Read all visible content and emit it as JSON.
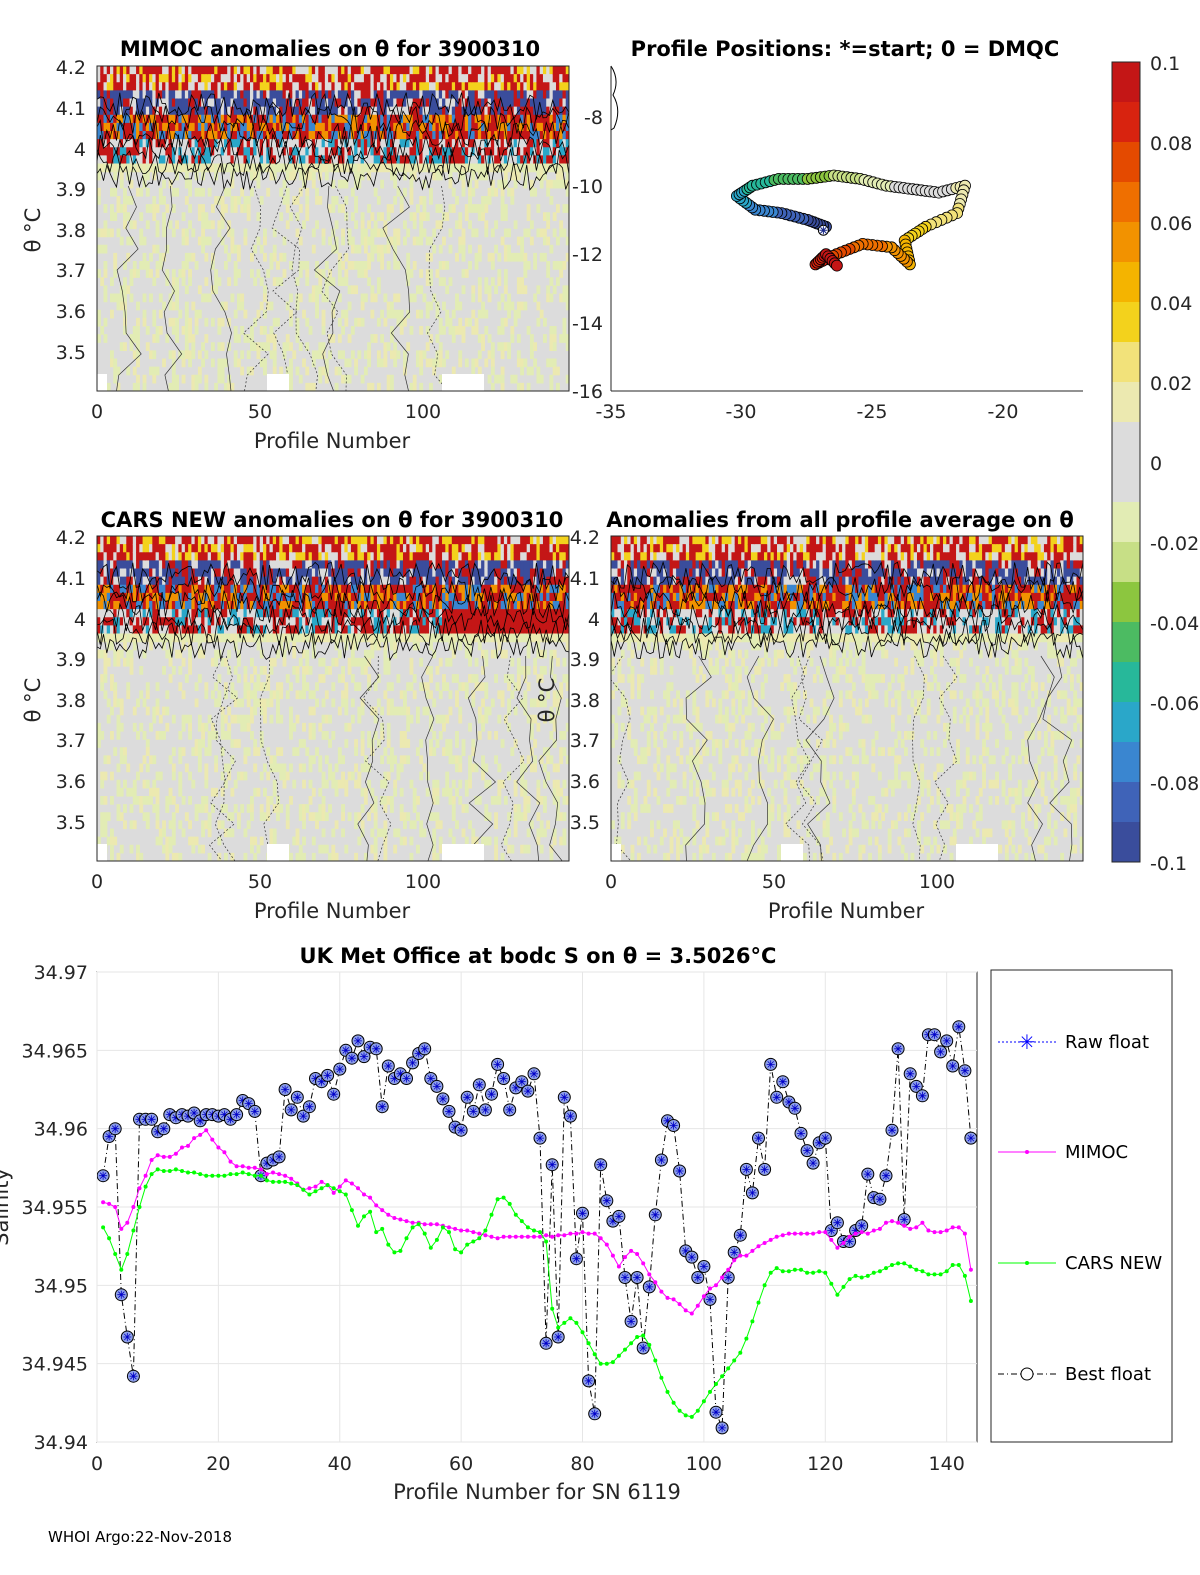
{
  "footer": "WHOI Argo:22-Nov-2018",
  "colorbar": {
    "ticks": [
      "0.1",
      "0.08",
      "0.06",
      "0.04",
      "0.02",
      "0",
      "-0.02",
      "-0.04",
      "-0.06",
      "-0.08",
      "-0.1"
    ]
  },
  "panel_mimoc": {
    "title": "MIMOC anomalies on θ  for 3900310",
    "ylabel": "θ °C",
    "xlabel": "Profile Number",
    "xticks": [
      "0",
      "50",
      "100"
    ],
    "yticks": [
      "4.2",
      "4.1",
      "4",
      "3.9",
      "3.8",
      "3.7",
      "3.6",
      "3.5"
    ]
  },
  "panel_map": {
    "title": "Profile Positions: *=start; 0 = DMQC",
    "xticks": [
      "-35",
      "-30",
      "-25",
      "-20"
    ],
    "yticks": [
      "-8",
      "-10",
      "-12",
      "-14",
      "-16"
    ]
  },
  "panel_cars": {
    "title": "CARS NEW anomalies on θ for 3900310",
    "ylabel": "θ °C",
    "xlabel": "Profile Number",
    "xticks": [
      "0",
      "50",
      "100"
    ],
    "yticks": [
      "4.2",
      "4.1",
      "4",
      "3.9",
      "3.8",
      "3.7",
      "3.6",
      "3.5"
    ]
  },
  "panel_avg": {
    "title": "Anomalies from all profile average on θ",
    "ylabel": "θ °C",
    "xlabel": "Profile Number",
    "xticks": [
      "0",
      "50",
      "100"
    ],
    "yticks": [
      "4.2",
      "4.1",
      "4",
      "3.9",
      "3.8",
      "3.7",
      "3.6",
      "3.5"
    ]
  },
  "chart_data": {
    "type": "line",
    "title": "UK Met Office at bodc S on θ = 3.5026°C",
    "xlabel": "Profile Number for SN 6119",
    "ylabel": "Salinity",
    "xlim": [
      0,
      145
    ],
    "ylim": [
      34.94,
      34.97
    ],
    "xticks": [
      "0",
      "20",
      "40",
      "60",
      "80",
      "100",
      "120",
      "140"
    ],
    "yticks": [
      "34.97",
      "34.965",
      "34.96",
      "34.955",
      "34.95",
      "34.945",
      "34.94"
    ],
    "legend": [
      "Raw float",
      "MIMOC",
      "CARS NEW",
      "Best float"
    ],
    "series": [
      {
        "name": "Best float",
        "color": "#000000",
        "x": [
          1,
          2,
          3,
          4,
          5,
          6,
          7,
          8,
          9,
          10,
          11,
          12,
          13,
          14,
          15,
          16,
          17,
          18,
          19,
          20,
          21,
          22,
          23,
          24,
          25,
          26,
          27,
          28,
          29,
          30,
          31,
          32,
          33,
          34,
          35,
          36,
          37,
          38,
          39,
          40,
          41,
          42,
          43,
          44,
          45,
          46,
          47,
          48,
          49,
          50,
          51,
          52,
          53,
          54,
          55,
          56,
          57,
          58,
          59,
          60,
          61,
          62,
          63,
          64,
          65,
          66,
          67,
          68,
          69,
          70,
          71,
          72,
          73,
          74,
          75,
          76,
          77,
          78,
          79,
          80,
          81,
          82,
          83,
          84,
          85,
          86,
          87,
          88,
          89,
          90,
          91,
          92,
          93,
          94,
          95,
          96,
          97,
          98,
          99,
          100,
          101,
          102,
          103,
          104,
          105,
          106,
          107,
          108,
          109,
          110,
          111,
          112,
          113,
          114,
          115,
          116,
          117,
          118,
          119,
          120,
          121,
          122,
          123,
          124,
          125,
          126,
          127,
          128,
          129,
          130,
          131,
          132,
          133,
          134,
          135,
          136,
          137,
          138,
          139,
          140,
          141,
          142,
          143,
          144
        ],
        "values": [
          34.957,
          34.9595,
          34.96,
          34.9494,
          34.9467,
          34.9442,
          34.9606,
          34.9606,
          34.9606,
          34.9598,
          34.96,
          34.9609,
          34.9607,
          34.9609,
          34.9608,
          34.961,
          34.9605,
          34.9609,
          34.9609,
          34.9608,
          34.9609,
          34.9606,
          34.9609,
          34.9618,
          34.9616,
          34.9611,
          34.957,
          34.9578,
          34.958,
          34.9582,
          34.9625,
          34.9612,
          34.962,
          34.9608,
          34.9614,
          34.9632,
          34.963,
          34.9634,
          34.9622,
          34.9638,
          34.965,
          34.9645,
          34.9656,
          34.9646,
          34.9652,
          34.9651,
          34.9614,
          34.964,
          34.9632,
          34.9635,
          34.9632,
          34.9642,
          34.9648,
          34.9651,
          34.9632,
          34.9627,
          34.9619,
          34.9611,
          34.9601,
          34.9599,
          34.962,
          34.9611,
          34.9628,
          34.9612,
          34.9622,
          34.9641,
          34.9632,
          34.9612,
          34.9626,
          34.963,
          34.9624,
          34.9635,
          34.9594,
          34.9463,
          34.9577,
          34.9467,
          34.962,
          34.9608,
          34.9517,
          34.9546,
          34.9439,
          34.9418,
          34.9577,
          34.9554,
          34.9541,
          34.9544,
          34.9505,
          34.9477,
          34.9505,
          34.946,
          34.9499,
          34.9545,
          34.958,
          34.9605,
          34.9602,
          34.9573,
          34.9522,
          34.9518,
          34.9505,
          34.9512,
          34.9491,
          34.9419,
          34.9409,
          34.9505,
          34.9521,
          34.9532,
          34.9574,
          34.9559,
          34.9594,
          34.9574,
          34.9641,
          34.962,
          34.963,
          34.9617,
          34.9613,
          34.9597,
          34.9586,
          34.9578,
          34.9591,
          34.9594,
          34.9535,
          34.954,
          34.9528,
          34.9528,
          34.9535,
          34.9538,
          34.9571,
          34.9556,
          34.9555,
          34.957,
          34.9599,
          34.9651,
          34.9542,
          34.9635,
          34.9627,
          34.9621,
          34.966,
          34.966,
          34.9649,
          34.9656,
          34.964,
          34.9665,
          34.9637,
          34.9594
        ]
      },
      {
        "name": "MIMOC",
        "color": "#ff00ff",
        "x": [
          1,
          2,
          3,
          4,
          5,
          6,
          7,
          8,
          9,
          10,
          11,
          12,
          13,
          14,
          15,
          16,
          17,
          18,
          19,
          20,
          21,
          22,
          23,
          24,
          25,
          26,
          27,
          28,
          29,
          30,
          31,
          32,
          33,
          34,
          35,
          36,
          37,
          38,
          39,
          40,
          41,
          42,
          43,
          44,
          45,
          46,
          47,
          48,
          49,
          50,
          51,
          52,
          53,
          54,
          55,
          56,
          57,
          58,
          59,
          60,
          61,
          62,
          63,
          64,
          65,
          66,
          67,
          68,
          69,
          70,
          71,
          72,
          73,
          74,
          75,
          76,
          77,
          78,
          79,
          80,
          81,
          82,
          83,
          84,
          85,
          86,
          87,
          88,
          89,
          90,
          91,
          92,
          93,
          94,
          95,
          96,
          97,
          98,
          99,
          100,
          101,
          102,
          103,
          104,
          105,
          106,
          107,
          108,
          109,
          110,
          111,
          112,
          113,
          114,
          115,
          116,
          117,
          118,
          119,
          120,
          121,
          122,
          123,
          124,
          125,
          126,
          127,
          128,
          129,
          130,
          131,
          132,
          133,
          134,
          135,
          136,
          137,
          138,
          139,
          140,
          141,
          142,
          143,
          144
        ],
        "values": [
          34.9553,
          34.9552,
          34.955,
          34.9536,
          34.954,
          34.955,
          34.9562,
          34.957,
          34.958,
          34.9583,
          34.9582,
          34.9582,
          34.9584,
          34.9588,
          34.9589,
          34.9594,
          34.9596,
          34.9599,
          34.9593,
          34.9588,
          34.9585,
          34.9579,
          34.9576,
          34.9576,
          34.9575,
          34.9575,
          34.9574,
          34.9571,
          34.9572,
          34.9571,
          34.957,
          34.9568,
          34.9565,
          34.9561,
          34.9562,
          34.9563,
          34.9566,
          34.9564,
          34.9559,
          34.9563,
          34.9567,
          34.9565,
          34.9562,
          34.9558,
          34.9556,
          34.9551,
          34.9548,
          34.9545,
          34.9543,
          34.9542,
          34.9541,
          34.954,
          34.954,
          34.9539,
          34.9539,
          34.9539,
          34.9538,
          34.9537,
          34.9536,
          34.9535,
          34.9535,
          34.9534,
          34.9533,
          34.9532,
          34.9531,
          34.953,
          34.9531,
          34.9531,
          34.9531,
          34.9531,
          34.9531,
          34.9531,
          34.9531,
          34.9532,
          34.9531,
          34.9532,
          34.9532,
          34.9533,
          34.9533,
          34.9534,
          34.9533,
          34.9533,
          34.953,
          34.9526,
          34.9519,
          34.9512,
          34.9518,
          34.9522,
          34.952,
          34.9514,
          34.9507,
          34.9502,
          34.9496,
          34.9492,
          34.9491,
          34.9488,
          34.9484,
          34.9482,
          34.9487,
          34.9493,
          34.9498,
          34.95,
          34.9505,
          34.951,
          34.9516,
          34.9519,
          34.9519,
          34.9522,
          34.9525,
          34.9527,
          34.9529,
          34.9531,
          34.9532,
          34.9533,
          34.9533,
          34.9533,
          34.9533,
          34.9533,
          34.9534,
          34.9534,
          34.9529,
          34.9524,
          34.9527,
          34.9531,
          34.9533,
          34.9534,
          34.9533,
          34.9535,
          34.9536,
          34.954,
          34.9541,
          34.954,
          34.9538,
          34.9536,
          34.9537,
          34.954,
          34.9535,
          34.9534,
          34.9534,
          34.9535,
          34.9537,
          34.9537,
          34.9533,
          34.951
        ]
      },
      {
        "name": "CARS NEW",
        "color": "#00ff00",
        "x": [
          1,
          2,
          3,
          4,
          5,
          6,
          7,
          8,
          9,
          10,
          11,
          12,
          13,
          14,
          15,
          16,
          17,
          18,
          19,
          20,
          21,
          22,
          23,
          24,
          25,
          26,
          27,
          28,
          29,
          30,
          31,
          32,
          33,
          34,
          35,
          36,
          37,
          38,
          39,
          40,
          41,
          42,
          43,
          44,
          45,
          46,
          47,
          48,
          49,
          50,
          51,
          52,
          53,
          54,
          55,
          56,
          57,
          58,
          59,
          60,
          61,
          62,
          63,
          64,
          65,
          66,
          67,
          68,
          69,
          70,
          71,
          72,
          73,
          74,
          75,
          76,
          77,
          78,
          79,
          80,
          81,
          82,
          83,
          84,
          85,
          86,
          87,
          88,
          89,
          90,
          91,
          92,
          93,
          94,
          95,
          96,
          97,
          98,
          99,
          100,
          101,
          102,
          103,
          104,
          105,
          106,
          107,
          108,
          109,
          110,
          111,
          112,
          113,
          114,
          115,
          116,
          117,
          118,
          119,
          120,
          121,
          122,
          123,
          124,
          125,
          126,
          127,
          128,
          129,
          130,
          131,
          132,
          133,
          134,
          135,
          136,
          137,
          138,
          139,
          140,
          141,
          142,
          143,
          144
        ],
        "values": [
          34.9537,
          34.953,
          34.952,
          34.951,
          34.952,
          34.9535,
          34.955,
          34.9563,
          34.9571,
          34.9574,
          34.9573,
          34.9573,
          34.9574,
          34.9573,
          34.9572,
          34.9572,
          34.9571,
          34.957,
          34.957,
          34.957,
          34.957,
          34.9571,
          34.9571,
          34.9572,
          34.9571,
          34.957,
          34.957,
          34.9567,
          34.9566,
          34.9566,
          34.9566,
          34.9565,
          34.9564,
          34.9561,
          34.9558,
          34.956,
          34.9562,
          34.9564,
          34.9562,
          34.956,
          34.9558,
          34.9548,
          34.9538,
          34.9544,
          34.9547,
          34.9534,
          34.9536,
          34.9526,
          34.9521,
          34.9522,
          34.953,
          34.9537,
          34.9539,
          34.9533,
          34.9524,
          34.9529,
          34.9537,
          34.9534,
          34.9523,
          34.9521,
          34.9526,
          34.9528,
          34.953,
          34.9535,
          34.9545,
          34.9555,
          34.9556,
          34.9552,
          34.9545,
          34.9541,
          34.9537,
          34.9535,
          34.9534,
          34.9528,
          34.9485,
          34.9473,
          34.9476,
          34.9479,
          34.9476,
          34.947,
          34.9463,
          34.9456,
          34.945,
          34.945,
          34.9451,
          34.9455,
          34.9459,
          34.9463,
          34.9467,
          34.9468,
          34.9462,
          34.9452,
          34.9441,
          34.9432,
          34.9425,
          34.942,
          34.9417,
          34.9416,
          34.942,
          34.9426,
          34.9432,
          34.9437,
          34.9442,
          34.9447,
          34.9452,
          34.9457,
          34.9466,
          34.9477,
          34.9489,
          34.95,
          34.9508,
          34.9511,
          34.9509,
          34.9509,
          34.951,
          34.951,
          34.9508,
          34.9508,
          34.9509,
          34.9508,
          34.9501,
          34.9494,
          34.9499,
          34.9504,
          34.9506,
          34.9505,
          34.9506,
          34.9508,
          34.9509,
          34.9511,
          34.9513,
          34.9514,
          34.9514,
          34.9512,
          34.951,
          34.9509,
          34.9507,
          34.9507,
          34.9507,
          34.9509,
          34.9513,
          34.9513,
          34.9506,
          34.949
        ]
      }
    ]
  }
}
